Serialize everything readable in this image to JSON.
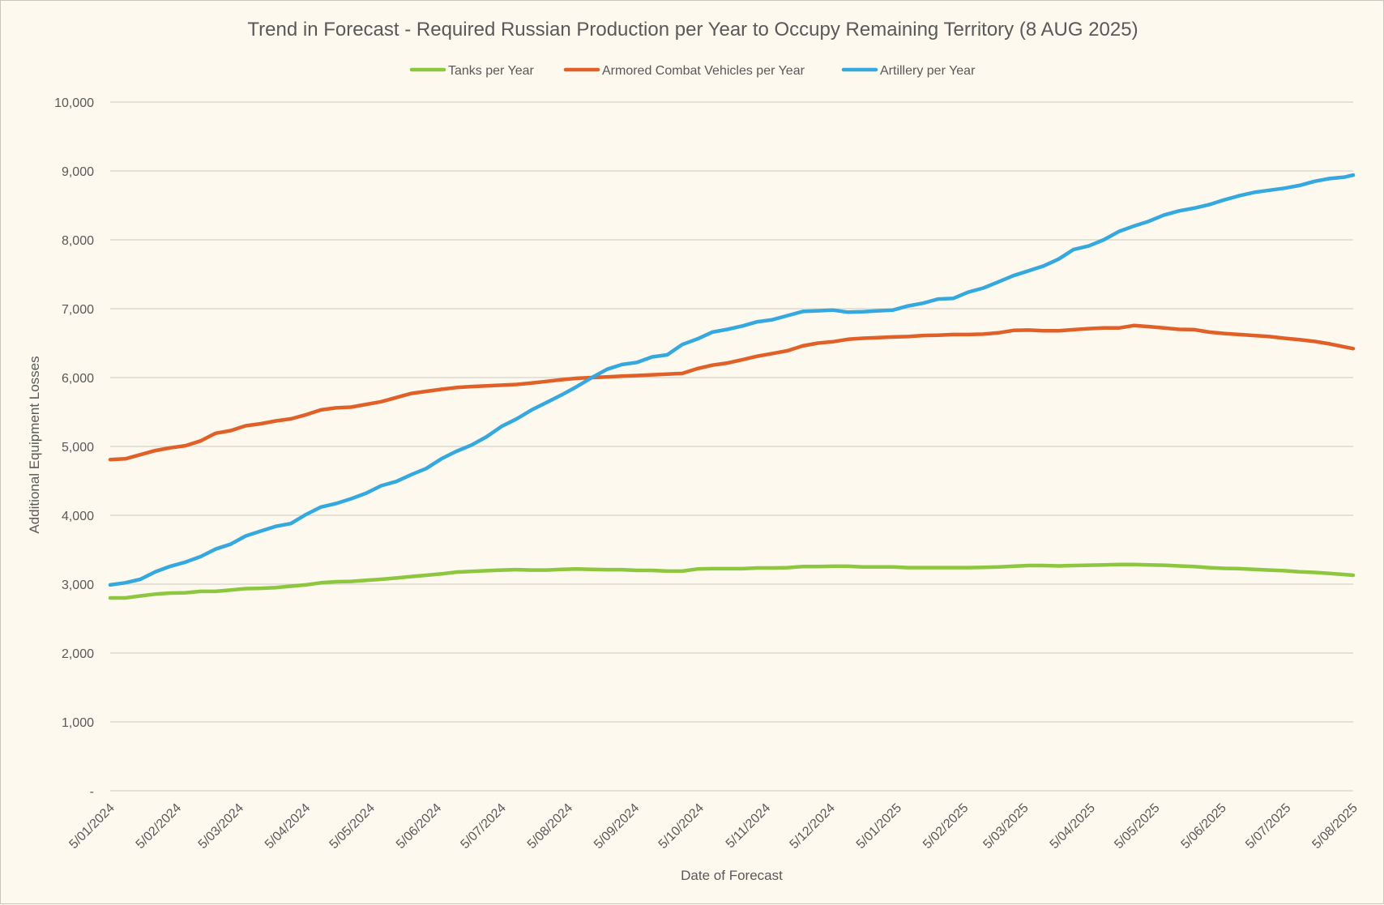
{
  "chart_data": {
    "type": "line",
    "title": "Trend in Forecast - Required Russian Production per Year to Occupy Remaining Territory (8 AUG 2025)",
    "xlabel": "Date of Forecast",
    "ylabel": "Additional Equipment Losses",
    "ylim": [
      0,
      10000
    ],
    "y_ticks": [
      {
        "value": 0,
        "label": "-"
      },
      {
        "value": 1000,
        "label": "1,000"
      },
      {
        "value": 2000,
        "label": "2,000"
      },
      {
        "value": 3000,
        "label": "3,000"
      },
      {
        "value": 4000,
        "label": "4,000"
      },
      {
        "value": 5000,
        "label": "5,000"
      },
      {
        "value": 6000,
        "label": "6,000"
      },
      {
        "value": 7000,
        "label": "7,000"
      },
      {
        "value": 8000,
        "label": "8,000"
      },
      {
        "value": 9000,
        "label": "9,000"
      },
      {
        "value": 10000,
        "label": "10,000"
      }
    ],
    "x_start": "2024-01-05",
    "x_end": "2025-08-05",
    "x_tick_dates": [
      "2024-01-05",
      "2024-02-05",
      "2024-03-05",
      "2024-04-05",
      "2024-05-05",
      "2024-06-05",
      "2024-07-05",
      "2024-08-05",
      "2024-09-05",
      "2024-10-05",
      "2024-11-05",
      "2024-12-05",
      "2025-01-05",
      "2025-02-05",
      "2025-03-05",
      "2025-04-05",
      "2025-05-05",
      "2025-06-05",
      "2025-07-05",
      "2025-08-05"
    ],
    "x_tick_labels": [
      "5/01/2024",
      "5/02/2024",
      "5/03/2024",
      "5/04/2024",
      "5/05/2024",
      "5/06/2024",
      "5/07/2024",
      "5/08/2024",
      "5/09/2024",
      "5/10/2024",
      "5/11/2024",
      "5/12/2024",
      "5/01/2025",
      "5/02/2025",
      "5/03/2025",
      "5/04/2025",
      "5/05/2025",
      "5/06/2025",
      "5/07/2025",
      "5/08/2025"
    ],
    "grid": true,
    "legend_position": "top",
    "series": [
      {
        "name": "Tanks per Year",
        "color": "#8dc63f",
        "points": [
          [
            "2024-01-05",
            2800
          ],
          [
            "2024-01-12",
            2800
          ],
          [
            "2024-01-19",
            2830
          ],
          [
            "2024-01-26",
            2855
          ],
          [
            "2024-02-02",
            2870
          ],
          [
            "2024-02-09",
            2875
          ],
          [
            "2024-02-16",
            2895
          ],
          [
            "2024-02-23",
            2895
          ],
          [
            "2024-03-01",
            2915
          ],
          [
            "2024-03-08",
            2935
          ],
          [
            "2024-03-15",
            2940
          ],
          [
            "2024-03-22",
            2950
          ],
          [
            "2024-03-29",
            2970
          ],
          [
            "2024-04-05",
            2990
          ],
          [
            "2024-04-12",
            3020
          ],
          [
            "2024-04-19",
            3035
          ],
          [
            "2024-04-26",
            3040
          ],
          [
            "2024-05-03",
            3055
          ],
          [
            "2024-05-10",
            3070
          ],
          [
            "2024-05-17",
            3090
          ],
          [
            "2024-05-24",
            3110
          ],
          [
            "2024-05-31",
            3130
          ],
          [
            "2024-06-07",
            3150
          ],
          [
            "2024-06-14",
            3175
          ],
          [
            "2024-06-21",
            3185
          ],
          [
            "2024-06-28",
            3195
          ],
          [
            "2024-07-05",
            3205
          ],
          [
            "2024-07-12",
            3210
          ],
          [
            "2024-07-19",
            3205
          ],
          [
            "2024-07-26",
            3205
          ],
          [
            "2024-08-02",
            3215
          ],
          [
            "2024-08-09",
            3220
          ],
          [
            "2024-08-16",
            3215
          ],
          [
            "2024-08-23",
            3210
          ],
          [
            "2024-08-30",
            3210
          ],
          [
            "2024-09-06",
            3200
          ],
          [
            "2024-09-13",
            3200
          ],
          [
            "2024-09-20",
            3190
          ],
          [
            "2024-09-27",
            3190
          ],
          [
            "2024-10-04",
            3220
          ],
          [
            "2024-10-11",
            3225
          ],
          [
            "2024-10-18",
            3225
          ],
          [
            "2024-10-25",
            3225
          ],
          [
            "2024-11-01",
            3235
          ],
          [
            "2024-11-08",
            3235
          ],
          [
            "2024-11-15",
            3240
          ],
          [
            "2024-11-22",
            3255
          ],
          [
            "2024-11-29",
            3255
          ],
          [
            "2024-12-06",
            3260
          ],
          [
            "2024-12-13",
            3260
          ],
          [
            "2024-12-20",
            3250
          ],
          [
            "2024-12-27",
            3250
          ],
          [
            "2025-01-03",
            3250
          ],
          [
            "2025-01-10",
            3240
          ],
          [
            "2025-01-17",
            3240
          ],
          [
            "2025-01-24",
            3240
          ],
          [
            "2025-01-31",
            3240
          ],
          [
            "2025-02-07",
            3240
          ],
          [
            "2025-02-14",
            3245
          ],
          [
            "2025-02-21",
            3250
          ],
          [
            "2025-02-28",
            3260
          ],
          [
            "2025-03-07",
            3270
          ],
          [
            "2025-03-14",
            3270
          ],
          [
            "2025-03-21",
            3265
          ],
          [
            "2025-03-28",
            3270
          ],
          [
            "2025-04-04",
            3275
          ],
          [
            "2025-04-11",
            3280
          ],
          [
            "2025-04-18",
            3285
          ],
          [
            "2025-04-25",
            3285
          ],
          [
            "2025-05-02",
            3280
          ],
          [
            "2025-05-09",
            3275
          ],
          [
            "2025-05-16",
            3265
          ],
          [
            "2025-05-23",
            3255
          ],
          [
            "2025-05-30",
            3240
          ],
          [
            "2025-06-06",
            3230
          ],
          [
            "2025-06-13",
            3225
          ],
          [
            "2025-06-20",
            3215
          ],
          [
            "2025-06-27",
            3205
          ],
          [
            "2025-07-04",
            3195
          ],
          [
            "2025-07-11",
            3180
          ],
          [
            "2025-07-18",
            3170
          ],
          [
            "2025-07-25",
            3155
          ],
          [
            "2025-08-01",
            3140
          ],
          [
            "2025-08-05",
            3130
          ]
        ]
      },
      {
        "name": "Armored Combat Vehicles per Year",
        "color": "#e06028",
        "points": [
          [
            "2024-01-05",
            4810
          ],
          [
            "2024-01-12",
            4820
          ],
          [
            "2024-01-19",
            4880
          ],
          [
            "2024-01-26",
            4940
          ],
          [
            "2024-02-02",
            4980
          ],
          [
            "2024-02-09",
            5010
          ],
          [
            "2024-02-16",
            5080
          ],
          [
            "2024-02-23",
            5190
          ],
          [
            "2024-03-01",
            5230
          ],
          [
            "2024-03-08",
            5300
          ],
          [
            "2024-03-15",
            5330
          ],
          [
            "2024-03-22",
            5370
          ],
          [
            "2024-03-29",
            5400
          ],
          [
            "2024-04-05",
            5460
          ],
          [
            "2024-04-12",
            5530
          ],
          [
            "2024-04-19",
            5560
          ],
          [
            "2024-04-26",
            5570
          ],
          [
            "2024-05-03",
            5610
          ],
          [
            "2024-05-10",
            5650
          ],
          [
            "2024-05-17",
            5710
          ],
          [
            "2024-05-24",
            5770
          ],
          [
            "2024-05-31",
            5800
          ],
          [
            "2024-06-07",
            5830
          ],
          [
            "2024-06-14",
            5855
          ],
          [
            "2024-06-21",
            5870
          ],
          [
            "2024-06-28",
            5880
          ],
          [
            "2024-07-05",
            5890
          ],
          [
            "2024-07-12",
            5900
          ],
          [
            "2024-07-19",
            5920
          ],
          [
            "2024-07-26",
            5945
          ],
          [
            "2024-08-02",
            5970
          ],
          [
            "2024-08-09",
            5990
          ],
          [
            "2024-08-16",
            6000
          ],
          [
            "2024-08-23",
            6010
          ],
          [
            "2024-08-30",
            6020
          ],
          [
            "2024-09-06",
            6030
          ],
          [
            "2024-09-13",
            6040
          ],
          [
            "2024-09-20",
            6050
          ],
          [
            "2024-09-27",
            6060
          ],
          [
            "2024-10-04",
            6130
          ],
          [
            "2024-10-11",
            6180
          ],
          [
            "2024-10-18",
            6210
          ],
          [
            "2024-10-25",
            6260
          ],
          [
            "2024-11-01",
            6310
          ],
          [
            "2024-11-08",
            6350
          ],
          [
            "2024-11-15",
            6390
          ],
          [
            "2024-11-22",
            6460
          ],
          [
            "2024-11-29",
            6500
          ],
          [
            "2024-12-06",
            6520
          ],
          [
            "2024-12-13",
            6555
          ],
          [
            "2024-12-20",
            6570
          ],
          [
            "2024-12-27",
            6580
          ],
          [
            "2025-01-03",
            6590
          ],
          [
            "2025-01-10",
            6595
          ],
          [
            "2025-01-17",
            6610
          ],
          [
            "2025-01-24",
            6615
          ],
          [
            "2025-01-31",
            6625
          ],
          [
            "2025-02-07",
            6625
          ],
          [
            "2025-02-14",
            6630
          ],
          [
            "2025-02-21",
            6650
          ],
          [
            "2025-02-28",
            6685
          ],
          [
            "2025-03-07",
            6690
          ],
          [
            "2025-03-14",
            6680
          ],
          [
            "2025-03-21",
            6680
          ],
          [
            "2025-03-28",
            6695
          ],
          [
            "2025-04-04",
            6710
          ],
          [
            "2025-04-11",
            6720
          ],
          [
            "2025-04-18",
            6720
          ],
          [
            "2025-04-25",
            6755
          ],
          [
            "2025-05-02",
            6740
          ],
          [
            "2025-05-09",
            6720
          ],
          [
            "2025-05-16",
            6700
          ],
          [
            "2025-05-23",
            6695
          ],
          [
            "2025-05-30",
            6660
          ],
          [
            "2025-06-06",
            6640
          ],
          [
            "2025-06-13",
            6625
          ],
          [
            "2025-06-20",
            6610
          ],
          [
            "2025-06-27",
            6595
          ],
          [
            "2025-07-04",
            6570
          ],
          [
            "2025-07-11",
            6550
          ],
          [
            "2025-07-18",
            6525
          ],
          [
            "2025-07-25",
            6490
          ],
          [
            "2025-08-01",
            6445
          ],
          [
            "2025-08-05",
            6420
          ]
        ]
      },
      {
        "name": "Artillery per Year",
        "color": "#35a8e0",
        "points": [
          [
            "2024-01-05",
            2990
          ],
          [
            "2024-01-12",
            3020
          ],
          [
            "2024-01-19",
            3070
          ],
          [
            "2024-01-26",
            3180
          ],
          [
            "2024-02-02",
            3260
          ],
          [
            "2024-02-09",
            3320
          ],
          [
            "2024-02-16",
            3400
          ],
          [
            "2024-02-23",
            3510
          ],
          [
            "2024-03-01",
            3580
          ],
          [
            "2024-03-08",
            3700
          ],
          [
            "2024-03-15",
            3770
          ],
          [
            "2024-03-22",
            3840
          ],
          [
            "2024-03-29",
            3880
          ],
          [
            "2024-04-05",
            4010
          ],
          [
            "2024-04-12",
            4120
          ],
          [
            "2024-04-19",
            4170
          ],
          [
            "2024-04-26",
            4240
          ],
          [
            "2024-05-03",
            4320
          ],
          [
            "2024-05-10",
            4430
          ],
          [
            "2024-05-17",
            4490
          ],
          [
            "2024-05-24",
            4590
          ],
          [
            "2024-05-31",
            4680
          ],
          [
            "2024-06-07",
            4820
          ],
          [
            "2024-06-14",
            4930
          ],
          [
            "2024-06-21",
            5020
          ],
          [
            "2024-06-28",
            5140
          ],
          [
            "2024-07-05",
            5290
          ],
          [
            "2024-07-12",
            5400
          ],
          [
            "2024-07-19",
            5530
          ],
          [
            "2024-07-26",
            5640
          ],
          [
            "2024-08-02",
            5750
          ],
          [
            "2024-08-09",
            5870
          ],
          [
            "2024-08-16",
            6000
          ],
          [
            "2024-08-23",
            6120
          ],
          [
            "2024-08-30",
            6190
          ],
          [
            "2024-09-06",
            6220
          ],
          [
            "2024-09-13",
            6300
          ],
          [
            "2024-09-20",
            6330
          ],
          [
            "2024-09-27",
            6480
          ],
          [
            "2024-10-04",
            6560
          ],
          [
            "2024-10-11",
            6660
          ],
          [
            "2024-10-18",
            6700
          ],
          [
            "2024-10-25",
            6750
          ],
          [
            "2024-11-01",
            6810
          ],
          [
            "2024-11-08",
            6840
          ],
          [
            "2024-11-15",
            6900
          ],
          [
            "2024-11-22",
            6960
          ],
          [
            "2024-11-29",
            6970
          ],
          [
            "2024-12-06",
            6980
          ],
          [
            "2024-12-13",
            6950
          ],
          [
            "2024-12-20",
            6955
          ],
          [
            "2024-12-27",
            6970
          ],
          [
            "2025-01-03",
            6980
          ],
          [
            "2025-01-10",
            7040
          ],
          [
            "2025-01-17",
            7080
          ],
          [
            "2025-01-24",
            7140
          ],
          [
            "2025-01-31",
            7150
          ],
          [
            "2025-02-07",
            7240
          ],
          [
            "2025-02-14",
            7300
          ],
          [
            "2025-02-21",
            7390
          ],
          [
            "2025-02-28",
            7480
          ],
          [
            "2025-03-07",
            7550
          ],
          [
            "2025-03-14",
            7620
          ],
          [
            "2025-03-21",
            7720
          ],
          [
            "2025-03-28",
            7860
          ],
          [
            "2025-04-04",
            7910
          ],
          [
            "2025-04-11",
            8000
          ],
          [
            "2025-04-18",
            8120
          ],
          [
            "2025-04-25",
            8200
          ],
          [
            "2025-05-02",
            8270
          ],
          [
            "2025-05-09",
            8360
          ],
          [
            "2025-05-16",
            8420
          ],
          [
            "2025-05-23",
            8460
          ],
          [
            "2025-05-30",
            8510
          ],
          [
            "2025-06-06",
            8580
          ],
          [
            "2025-06-13",
            8640
          ],
          [
            "2025-06-20",
            8690
          ],
          [
            "2025-06-27",
            8720
          ],
          [
            "2025-07-04",
            8750
          ],
          [
            "2025-07-11",
            8790
          ],
          [
            "2025-07-18",
            8850
          ],
          [
            "2025-07-25",
            8890
          ],
          [
            "2025-08-01",
            8910
          ],
          [
            "2025-08-05",
            8940
          ]
        ]
      }
    ]
  }
}
